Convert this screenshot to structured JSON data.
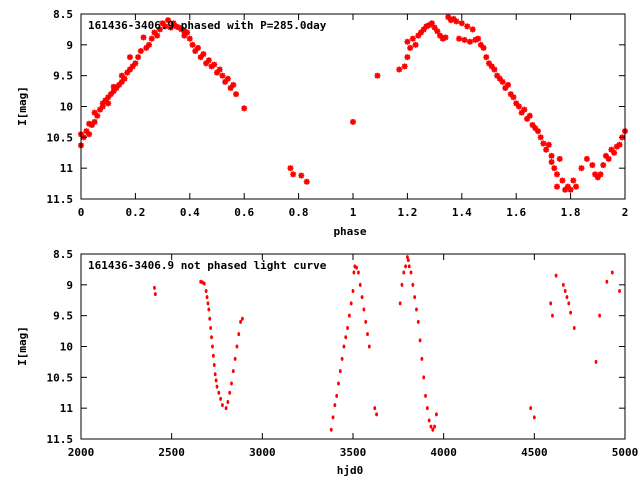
{
  "chart_data": [
    {
      "type": "scatter",
      "title": "161436-3406.9 phased with P=285.0day",
      "xlabel": "phase",
      "ylabel": "I[mag]",
      "xlim": [
        0,
        2
      ],
      "ylim": [
        11.5,
        8.5
      ],
      "y_inverted": true,
      "xticks": [
        0,
        0.2,
        0.4,
        0.6,
        0.8,
        1,
        1.2,
        1.4,
        1.6,
        1.8,
        2
      ],
      "xtick_labels": [
        "0",
        "0.2",
        "0.4",
        "0.6",
        "0.8",
        "1",
        "1.2",
        "1.4",
        "1.6",
        "1.8",
        "2"
      ],
      "yticks": [
        8.5,
        9,
        9.5,
        10,
        10.5,
        11,
        11.5
      ],
      "ytick_labels": [
        "8.5",
        "9",
        "9.5",
        "10",
        "10.5",
        "11",
        "11.5"
      ],
      "grid": false,
      "marker_color": "#ff0000",
      "marker": "star",
      "points": [
        [
          0.0,
          10.45
        ],
        [
          0.0,
          10.63
        ],
        [
          0.01,
          10.5
        ],
        [
          0.02,
          10.4
        ],
        [
          0.03,
          10.45
        ],
        [
          0.03,
          10.28
        ],
        [
          0.04,
          10.3
        ],
        [
          0.05,
          10.25
        ],
        [
          0.05,
          10.1
        ],
        [
          0.06,
          10.15
        ],
        [
          0.07,
          10.05
        ],
        [
          0.08,
          10.0
        ],
        [
          0.08,
          9.95
        ],
        [
          0.09,
          9.9
        ],
        [
          0.1,
          9.95
        ],
        [
          0.1,
          9.85
        ],
        [
          0.11,
          9.8
        ],
        [
          0.12,
          9.75
        ],
        [
          0.12,
          9.68
        ],
        [
          0.13,
          9.7
        ],
        [
          0.14,
          9.65
        ],
        [
          0.15,
          9.6
        ],
        [
          0.15,
          9.5
        ],
        [
          0.16,
          9.55
        ],
        [
          0.17,
          9.45
        ],
        [
          0.18,
          9.4
        ],
        [
          0.18,
          9.2
        ],
        [
          0.19,
          9.35
        ],
        [
          0.2,
          9.3
        ],
        [
          0.21,
          9.2
        ],
        [
          0.22,
          9.1
        ],
        [
          0.23,
          8.88
        ],
        [
          0.24,
          9.05
        ],
        [
          0.25,
          9.0
        ],
        [
          0.26,
          8.9
        ],
        [
          0.27,
          8.8
        ],
        [
          0.28,
          8.85
        ],
        [
          0.29,
          8.75
        ],
        [
          0.3,
          8.65
        ],
        [
          0.31,
          8.7
        ],
        [
          0.32,
          8.6
        ],
        [
          0.33,
          8.72
        ],
        [
          0.34,
          8.65
        ],
        [
          0.35,
          8.7
        ],
        [
          0.36,
          8.72
        ],
        [
          0.37,
          8.75
        ],
        [
          0.38,
          8.78
        ],
        [
          0.38,
          8.85
        ],
        [
          0.39,
          8.8
        ],
        [
          0.4,
          8.9
        ],
        [
          0.41,
          9.0
        ],
        [
          0.42,
          9.1
        ],
        [
          0.43,
          9.05
        ],
        [
          0.44,
          9.2
        ],
        [
          0.45,
          9.15
        ],
        [
          0.46,
          9.3
        ],
        [
          0.47,
          9.25
        ],
        [
          0.48,
          9.35
        ],
        [
          0.49,
          9.32
        ],
        [
          0.5,
          9.45
        ],
        [
          0.51,
          9.4
        ],
        [
          0.52,
          9.5
        ],
        [
          0.53,
          9.6
        ],
        [
          0.54,
          9.55
        ],
        [
          0.55,
          9.7
        ],
        [
          0.56,
          9.65
        ],
        [
          0.57,
          9.8
        ],
        [
          0.6,
          10.03
        ],
        [
          0.77,
          11.0
        ],
        [
          0.78,
          11.1
        ],
        [
          0.81,
          11.12
        ],
        [
          0.83,
          11.22
        ],
        [
          1.0,
          10.25
        ],
        [
          1.09,
          9.5
        ],
        [
          1.17,
          9.4
        ],
        [
          1.19,
          9.35
        ],
        [
          1.2,
          9.2
        ],
        [
          1.2,
          8.95
        ],
        [
          1.21,
          9.05
        ],
        [
          1.22,
          8.9
        ],
        [
          1.23,
          9.0
        ],
        [
          1.24,
          8.85
        ],
        [
          1.25,
          8.8
        ],
        [
          1.26,
          8.75
        ],
        [
          1.27,
          8.7
        ],
        [
          1.28,
          8.68
        ],
        [
          1.29,
          8.65
        ],
        [
          1.3,
          8.72
        ],
        [
          1.31,
          8.78
        ],
        [
          1.32,
          8.85
        ],
        [
          1.33,
          8.9
        ],
        [
          1.34,
          8.88
        ],
        [
          1.35,
          8.55
        ],
        [
          1.36,
          8.6
        ],
        [
          1.37,
          8.58
        ],
        [
          1.38,
          8.62
        ],
        [
          1.39,
          8.9
        ],
        [
          1.4,
          8.65
        ],
        [
          1.41,
          8.92
        ],
        [
          1.42,
          8.7
        ],
        [
          1.43,
          8.95
        ],
        [
          1.44,
          8.75
        ],
        [
          1.45,
          8.92
        ],
        [
          1.46,
          8.9
        ],
        [
          1.47,
          9.0
        ],
        [
          1.48,
          9.05
        ],
        [
          1.49,
          9.2
        ],
        [
          1.5,
          9.3
        ],
        [
          1.51,
          9.35
        ],
        [
          1.52,
          9.4
        ],
        [
          1.53,
          9.5
        ],
        [
          1.54,
          9.55
        ],
        [
          1.55,
          9.6
        ],
        [
          1.56,
          9.7
        ],
        [
          1.57,
          9.65
        ],
        [
          1.58,
          9.8
        ],
        [
          1.59,
          9.85
        ],
        [
          1.6,
          9.95
        ],
        [
          1.61,
          10.0
        ],
        [
          1.62,
          10.1
        ],
        [
          1.63,
          10.05
        ],
        [
          1.64,
          10.2
        ],
        [
          1.65,
          10.15
        ],
        [
          1.66,
          10.3
        ],
        [
          1.67,
          10.35
        ],
        [
          1.68,
          10.4
        ],
        [
          1.69,
          10.5
        ],
        [
          1.7,
          10.6
        ],
        [
          1.71,
          10.7
        ],
        [
          1.72,
          10.62
        ],
        [
          1.73,
          10.8
        ],
        [
          1.73,
          10.9
        ],
        [
          1.74,
          11.0
        ],
        [
          1.75,
          11.1
        ],
        [
          1.75,
          11.3
        ],
        [
          1.76,
          10.85
        ],
        [
          1.77,
          11.2
        ],
        [
          1.78,
          11.35
        ],
        [
          1.79,
          11.3
        ],
        [
          1.8,
          11.35
        ],
        [
          1.81,
          11.2
        ],
        [
          1.82,
          11.3
        ],
        [
          1.84,
          11.0
        ],
        [
          1.86,
          10.85
        ],
        [
          1.88,
          10.95
        ],
        [
          1.89,
          11.1
        ],
        [
          1.9,
          11.15
        ],
        [
          1.91,
          11.1
        ],
        [
          1.92,
          10.95
        ],
        [
          1.93,
          10.8
        ],
        [
          1.94,
          10.85
        ],
        [
          1.95,
          10.7
        ],
        [
          1.96,
          10.75
        ],
        [
          1.97,
          10.65
        ],
        [
          1.98,
          10.62
        ],
        [
          1.99,
          10.5
        ],
        [
          2.0,
          10.4
        ]
      ]
    },
    {
      "type": "scatter",
      "title": "161436-3406.9 not phased light curve",
      "xlabel": "hjd0",
      "ylabel": "I[mag]",
      "xlim": [
        2000,
        5000
      ],
      "ylim": [
        11.5,
        8.5
      ],
      "y_inverted": true,
      "xticks": [
        2000,
        2500,
        3000,
        3500,
        4000,
        4500,
        5000
      ],
      "xtick_labels": [
        "2000",
        "2500",
        "3000",
        "3500",
        "4000",
        "4500",
        "5000"
      ],
      "yticks": [
        8.5,
        9,
        9.5,
        10,
        10.5,
        11,
        11.5
      ],
      "ytick_labels": [
        "8.5",
        "9",
        "9.5",
        "10",
        "10.5",
        "11",
        "11.5"
      ],
      "grid": false,
      "marker_color": "#ff0000",
      "marker": "dot",
      "points": [
        [
          2405,
          9.05
        ],
        [
          2410,
          9.15
        ],
        [
          2660,
          8.95
        ],
        [
          2670,
          8.96
        ],
        [
          2680,
          8.98
        ],
        [
          2690,
          9.1
        ],
        [
          2695,
          9.2
        ],
        [
          2700,
          9.3
        ],
        [
          2705,
          9.4
        ],
        [
          2710,
          9.55
        ],
        [
          2715,
          9.7
        ],
        [
          2720,
          9.85
        ],
        [
          2725,
          10.0
        ],
        [
          2730,
          10.15
        ],
        [
          2735,
          10.3
        ],
        [
          2740,
          10.45
        ],
        [
          2745,
          10.55
        ],
        [
          2750,
          10.65
        ],
        [
          2760,
          10.75
        ],
        [
          2770,
          10.85
        ],
        [
          2780,
          10.95
        ],
        [
          2800,
          11.0
        ],
        [
          2810,
          10.9
        ],
        [
          2820,
          10.75
        ],
        [
          2830,
          10.6
        ],
        [
          2840,
          10.4
        ],
        [
          2850,
          10.2
        ],
        [
          2860,
          10.0
        ],
        [
          2870,
          9.8
        ],
        [
          2880,
          9.6
        ],
        [
          2890,
          9.55
        ],
        [
          3380,
          11.35
        ],
        [
          3390,
          11.15
        ],
        [
          3400,
          10.95
        ],
        [
          3410,
          10.8
        ],
        [
          3420,
          10.6
        ],
        [
          3430,
          10.4
        ],
        [
          3440,
          10.2
        ],
        [
          3450,
          10.0
        ],
        [
          3460,
          9.85
        ],
        [
          3470,
          9.7
        ],
        [
          3480,
          9.5
        ],
        [
          3490,
          9.3
        ],
        [
          3500,
          9.1
        ],
        [
          3505,
          8.8
        ],
        [
          3510,
          8.7
        ],
        [
          3520,
          8.72
        ],
        [
          3530,
          8.8
        ],
        [
          3540,
          9.0
        ],
        [
          3550,
          9.2
        ],
        [
          3560,
          9.4
        ],
        [
          3570,
          9.6
        ],
        [
          3580,
          9.8
        ],
        [
          3590,
          10.0
        ],
        [
          3620,
          11.0
        ],
        [
          3630,
          11.1
        ],
        [
          3760,
          9.3
        ],
        [
          3770,
          9.0
        ],
        [
          3780,
          8.8
        ],
        [
          3790,
          8.7
        ],
        [
          3800,
          8.55
        ],
        [
          3805,
          8.6
        ],
        [
          3810,
          8.7
        ],
        [
          3820,
          8.8
        ],
        [
          3830,
          9.0
        ],
        [
          3840,
          9.2
        ],
        [
          3850,
          9.4
        ],
        [
          3860,
          9.6
        ],
        [
          3870,
          9.9
        ],
        [
          3880,
          10.2
        ],
        [
          3890,
          10.5
        ],
        [
          3900,
          10.8
        ],
        [
          3910,
          11.0
        ],
        [
          3920,
          11.2
        ],
        [
          3930,
          11.3
        ],
        [
          3940,
          11.35
        ],
        [
          3950,
          11.3
        ],
        [
          3960,
          11.1
        ],
        [
          4480,
          11.0
        ],
        [
          4500,
          11.15
        ],
        [
          4590,
          9.3
        ],
        [
          4600,
          9.5
        ],
        [
          4620,
          8.85
        ],
        [
          4660,
          9.0
        ],
        [
          4670,
          9.1
        ],
        [
          4680,
          9.2
        ],
        [
          4690,
          9.3
        ],
        [
          4700,
          9.45
        ],
        [
          4720,
          9.7
        ],
        [
          4840,
          10.25
        ],
        [
          4860,
          9.5
        ],
        [
          4900,
          8.95
        ],
        [
          4930,
          8.8
        ],
        [
          4970,
          9.1
        ]
      ]
    }
  ]
}
